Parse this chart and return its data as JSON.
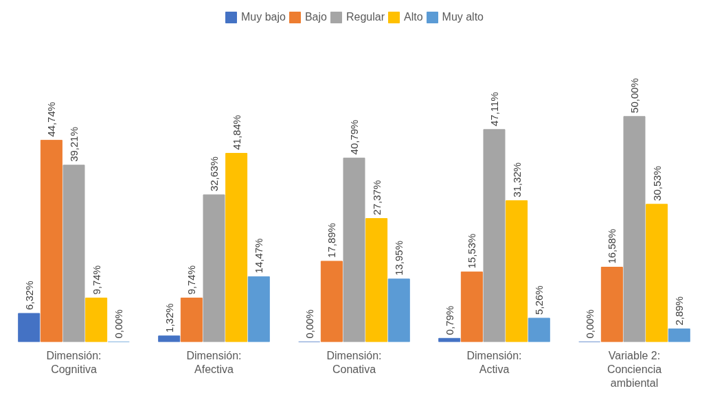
{
  "chart_data": {
    "type": "bar",
    "categories": [
      "Dimensión:\nCognitiva",
      "Dimensión:\nAfectiva",
      "Dimensión:\nConativa",
      "Dimensión:\nActiva",
      "Variable 2:\nConciencia\nambiental"
    ],
    "series": [
      {
        "name": "Muy bajo",
        "color": "#4472c4",
        "values": [
          6.32,
          1.32,
          0.0,
          0.79,
          0.0
        ],
        "value_labels": [
          "6,32%",
          "1,32%",
          "0,00%",
          "0,79%",
          "0,00%"
        ]
      },
      {
        "name": "Bajo",
        "color": "#ed7d31",
        "values": [
          44.74,
          9.74,
          17.89,
          15.53,
          16.58
        ],
        "value_labels": [
          "44,74%",
          "9,74%",
          "17,89%",
          "15,53%",
          "16,58%"
        ]
      },
      {
        "name": "Regular",
        "color": "#a5a5a5",
        "values": [
          39.21,
          32.63,
          40.79,
          47.11,
          50.0
        ],
        "value_labels": [
          "39,21%",
          "32,63%",
          "40,79%",
          "47,11%",
          "50,00%"
        ]
      },
      {
        "name": "Alto",
        "color": "#ffc000",
        "values": [
          9.74,
          41.84,
          27.37,
          31.32,
          30.53
        ],
        "value_labels": [
          "9,74%",
          "41,84%",
          "27,37%",
          "31,32%",
          "30,53%"
        ]
      },
      {
        "name": "Muy alto",
        "color": "#5b9bd5",
        "values": [
          0.0,
          14.47,
          13.95,
          5.26,
          2.89
        ],
        "value_labels": [
          "0,00%",
          "14,47%",
          "13,95%",
          "5,26%",
          "2,89%"
        ]
      }
    ],
    "legend": "top",
    "grid": false
  }
}
